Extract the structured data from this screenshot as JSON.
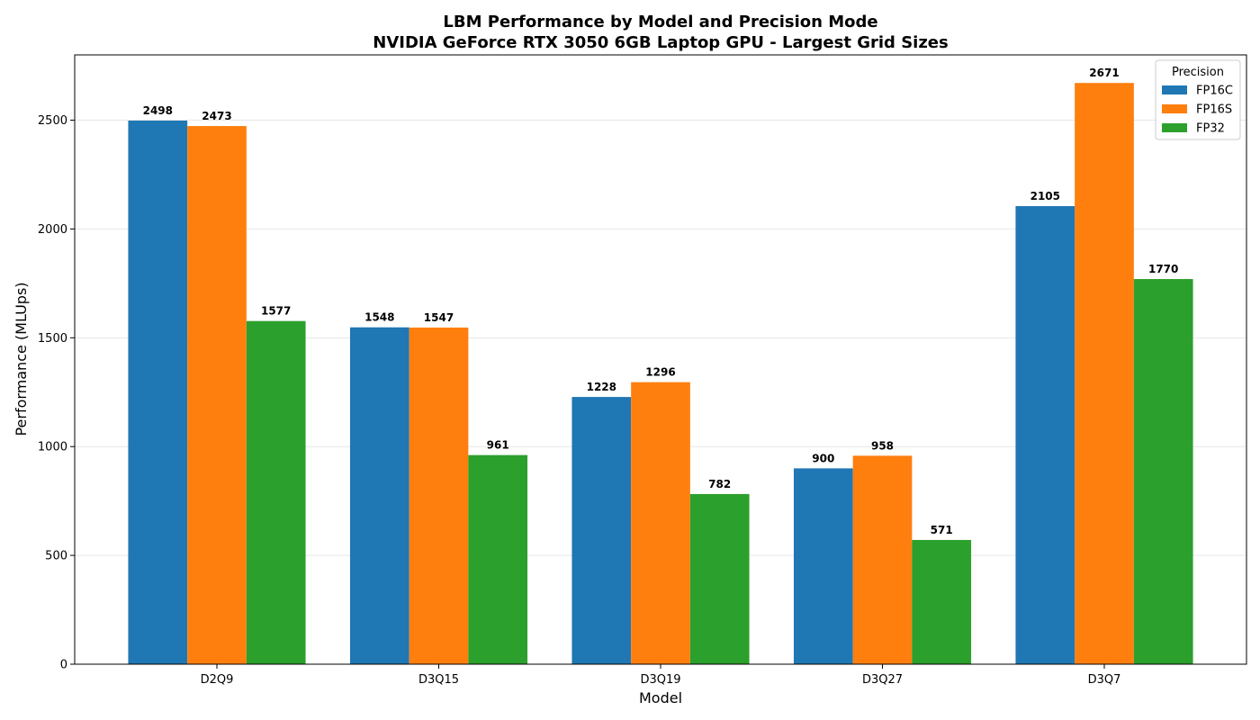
{
  "chart_data": {
    "type": "bar",
    "title": "LBM Performance by Model and Precision Mode",
    "subtitle": "NVIDIA GeForce RTX 3050 6GB Laptop GPU - Largest Grid Sizes",
    "xlabel": "Model",
    "ylabel": "Performance (MLUps)",
    "ylim": [
      0,
      2800
    ],
    "yticks": [
      "0",
      "500",
      "1000",
      "1500",
      "2000",
      "2500"
    ],
    "grid": "horizontal",
    "categories": [
      "D2Q9",
      "D3Q15",
      "D3Q19",
      "D3Q27",
      "D3Q7"
    ],
    "legend": {
      "title": "Precision",
      "placement": "top-right"
    },
    "series": [
      {
        "name": "FP16C",
        "color": "#1f77b4",
        "values": [
          2498,
          1548,
          1228,
          900,
          2105
        ],
        "labels": [
          "2498",
          "1548",
          "1228",
          "900",
          "2105"
        ]
      },
      {
        "name": "FP16S",
        "color": "#ff7f0e",
        "values": [
          2473,
          1547,
          1296,
          958,
          2671
        ],
        "labels": [
          "2473",
          "1547",
          "1296",
          "958",
          "2671"
        ]
      },
      {
        "name": "FP32",
        "color": "#2ca02c",
        "values": [
          1577,
          961,
          782,
          571,
          1770
        ],
        "labels": [
          "1577",
          "961",
          "782",
          "571",
          "1770"
        ]
      }
    ]
  }
}
